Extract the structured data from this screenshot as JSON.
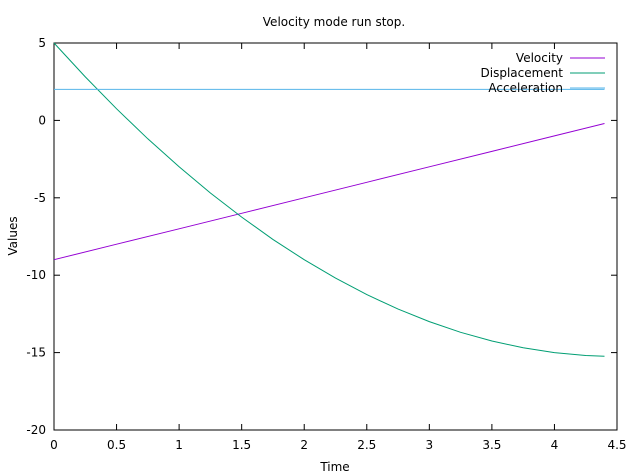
{
  "chart_data": {
    "type": "line",
    "title": "Velocity mode run stop.",
    "xlabel": "Time",
    "ylabel": "Values",
    "xlim": [
      0,
      4.5
    ],
    "ylim": [
      -20,
      5
    ],
    "xticks": [
      0,
      0.5,
      1,
      1.5,
      2,
      2.5,
      3,
      3.5,
      4,
      4.5
    ],
    "xtick_labels": [
      "0",
      "0.5",
      "1",
      "1.5",
      "2",
      "2.5",
      "3",
      "3.5",
      "4",
      "4.5"
    ],
    "yticks": [
      -20,
      -15,
      -10,
      -5,
      0,
      5
    ],
    "ytick_labels": [
      "-20",
      "-15",
      "-10",
      "-5",
      "0",
      "5"
    ],
    "grid": false,
    "legend_position": "top-right",
    "series": [
      {
        "name": "Velocity",
        "color": "#9400d3",
        "x": [
          0,
          0.5,
          1,
          1.5,
          2,
          2.5,
          3,
          3.5,
          4,
          4.4
        ],
        "y": [
          -9,
          -8,
          -7,
          -6,
          -5,
          -4,
          -3,
          -2,
          -1,
          -0.2
        ]
      },
      {
        "name": "Displacement",
        "color": "#009e73",
        "x": [
          0,
          0.25,
          0.5,
          0.75,
          1,
          1.25,
          1.5,
          1.75,
          2,
          2.25,
          2.5,
          2.75,
          3,
          3.25,
          3.5,
          3.75,
          4,
          4.25,
          4.4
        ],
        "y": [
          5,
          2.81,
          0.75,
          -1.19,
          -3,
          -4.69,
          -6.25,
          -7.69,
          -9,
          -10.19,
          -11.25,
          -12.19,
          -13,
          -13.69,
          -14.25,
          -14.69,
          -15,
          -15.19,
          -15.24
        ]
      },
      {
        "name": "Acceleration",
        "color": "#56b4e9",
        "x": [
          0,
          4.4
        ],
        "y": [
          2,
          2
        ]
      }
    ]
  }
}
